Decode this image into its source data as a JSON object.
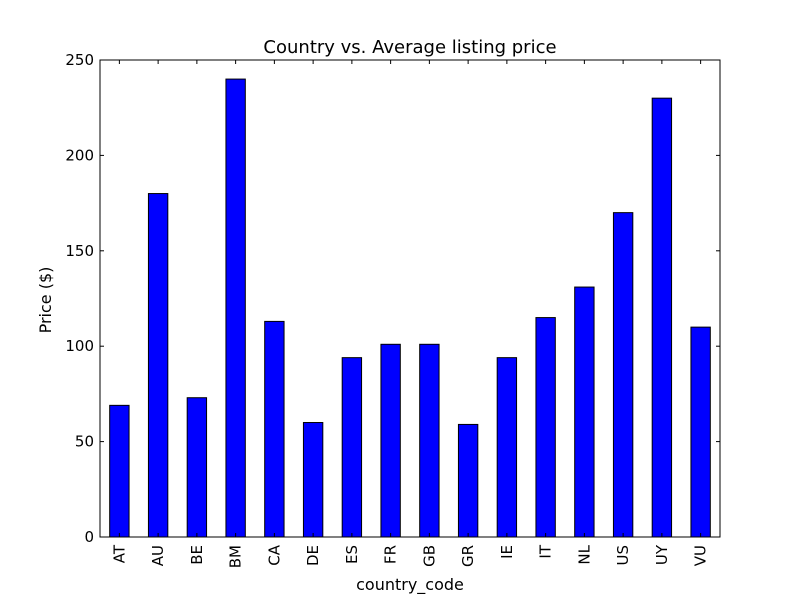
{
  "chart_data": {
    "type": "bar",
    "title": "Country vs. Average listing price",
    "xlabel": "country_code",
    "ylabel": "Price ($)",
    "categories": [
      "AT",
      "AU",
      "BE",
      "BM",
      "CA",
      "DE",
      "ES",
      "FR",
      "GB",
      "GR",
      "IE",
      "IT",
      "NL",
      "US",
      "UY",
      "VU"
    ],
    "values": [
      69,
      180,
      73,
      240,
      113,
      60,
      94,
      101,
      101,
      59,
      94,
      115,
      131,
      170,
      230,
      110
    ],
    "ylim": [
      0,
      250
    ],
    "yticks": [
      0,
      50,
      100,
      150,
      200,
      250
    ],
    "bar_color": "#0000ff",
    "edge_color": "#000000",
    "grid": false,
    "legend": "none"
  }
}
